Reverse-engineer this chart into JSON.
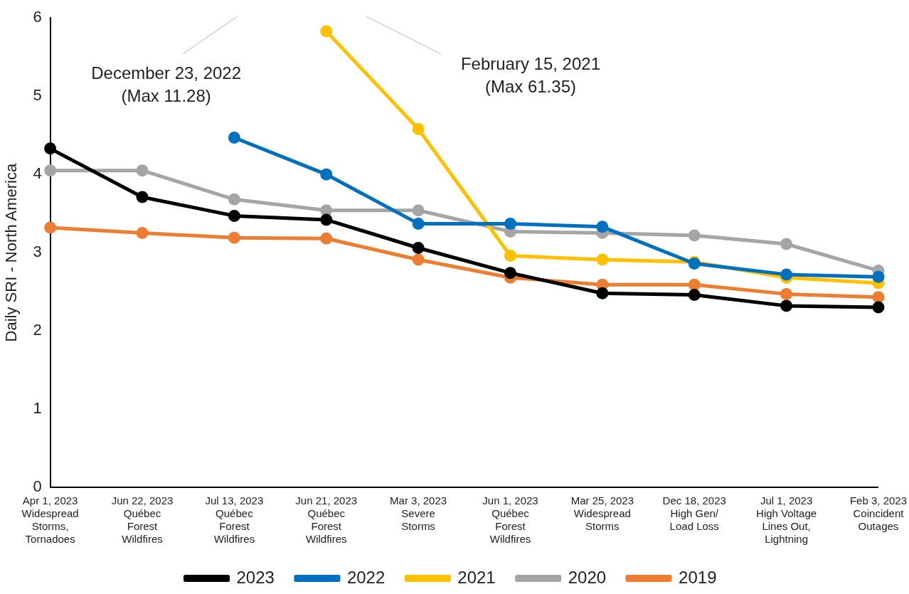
{
  "chart_data": {
    "type": "line",
    "ylabel": "Daily SRI - North America",
    "categories": [
      "Apr 1, 2023\nWidespread\nStorms,\nTornadoes",
      "Jun 22, 2023\nQuébec\nForest\nWildfires",
      "Jul 13, 2023\nQuébec\nForest\nWildfires",
      "Jun 21, 2023\nQuébec\nForest\nWildfires",
      "Mar 3, 2023\nSevere\nStorms",
      "Jun 1, 2023\nQuébec\nForest\nWildfires",
      "Mar 25, 2023\nWidespread\nStorms",
      "Dec 18, 2023\nHigh Gen/\nLoad Loss",
      "Jul 1, 2023\nHigh Voltage\nLines Out,\nLightning",
      "Feb 3, 2023\nCoincident\nOutages"
    ],
    "series": [
      {
        "name": "2019",
        "color": "#ed7d31",
        "values": [
          3.32,
          3.25,
          3.19,
          3.18,
          2.91,
          2.68,
          2.59,
          2.59,
          2.47,
          2.43
        ]
      },
      {
        "name": "2020",
        "color": "#a5a5a5",
        "values": [
          4.05,
          4.05,
          3.68,
          3.54,
          3.54,
          3.27,
          3.25,
          3.22,
          3.11,
          2.77
        ]
      },
      {
        "name": "2021",
        "color": "#ffc000",
        "values": [
          null,
          null,
          null,
          5.83,
          4.58,
          2.96,
          2.91,
          2.88,
          2.68,
          2.61
        ]
      },
      {
        "name": "2022",
        "color": "#0070c0",
        "values": [
          null,
          null,
          4.47,
          4.0,
          3.37,
          3.37,
          3.33,
          2.86,
          2.72,
          2.69
        ]
      },
      {
        "name": "2023",
        "color": "#000000",
        "values": [
          4.33,
          3.71,
          3.47,
          3.42,
          3.06,
          2.74,
          2.48,
          2.46,
          2.32,
          2.3
        ]
      }
    ],
    "ylim": [
      0,
      6
    ],
    "yticks": [
      0,
      1,
      2,
      3,
      4,
      5,
      6
    ],
    "grid": false,
    "legend": "bottom",
    "marker": "circle",
    "line_style": "solid",
    "annotations": [
      "December 23, 2022\n(Max 11.28)",
      "February 15, 2021\n(Max 61.35)"
    ]
  }
}
